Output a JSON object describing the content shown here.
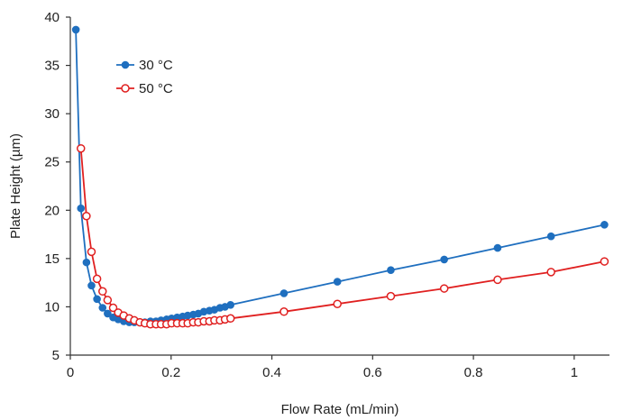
{
  "chart_data": {
    "type": "line",
    "xlabel": "Flow Rate (mL/min)",
    "ylabel": "Plate Height (µm)",
    "xlim": [
      0,
      1.07
    ],
    "ylim": [
      5,
      40
    ],
    "xticks": [
      0,
      0.2,
      0.4,
      0.6,
      0.8,
      1
    ],
    "xtick_labels": [
      "0",
      "0.2",
      "0.4",
      "0.6",
      "0.8",
      "1"
    ],
    "yticks": [
      5,
      10,
      15,
      20,
      25,
      30,
      35,
      40
    ],
    "ytick_labels": [
      "5",
      "10",
      "15",
      "20",
      "25",
      "30",
      "35",
      "40"
    ],
    "grid": false,
    "legend_position": "top-left",
    "series": [
      {
        "name": "30 °C",
        "color": "#1f6fbf",
        "marker": "filled-circle",
        "x": [
          0.011,
          0.021,
          0.032,
          0.042,
          0.053,
          0.064,
          0.074,
          0.085,
          0.095,
          0.106,
          0.117,
          0.127,
          0.138,
          0.148,
          0.159,
          0.17,
          0.18,
          0.191,
          0.201,
          0.212,
          0.223,
          0.233,
          0.244,
          0.254,
          0.265,
          0.276,
          0.286,
          0.297,
          0.307,
          0.318,
          0.424,
          0.53,
          0.636,
          0.742,
          0.848,
          0.954,
          1.06
        ],
        "y": [
          38.7,
          20.2,
          14.6,
          12.2,
          10.8,
          9.9,
          9.3,
          8.9,
          8.7,
          8.5,
          8.4,
          8.4,
          8.4,
          8.4,
          8.5,
          8.5,
          8.6,
          8.7,
          8.8,
          8.9,
          9.0,
          9.1,
          9.2,
          9.3,
          9.5,
          9.6,
          9.7,
          9.9,
          10.0,
          10.2,
          11.4,
          12.6,
          13.8,
          14.9,
          16.1,
          17.3,
          18.5
        ]
      },
      {
        "name": "50 °C",
        "color": "#e02020",
        "marker": "open-circle",
        "x": [
          0.021,
          0.032,
          0.042,
          0.053,
          0.064,
          0.074,
          0.085,
          0.095,
          0.106,
          0.117,
          0.127,
          0.138,
          0.148,
          0.159,
          0.17,
          0.18,
          0.191,
          0.201,
          0.212,
          0.223,
          0.233,
          0.244,
          0.254,
          0.265,
          0.276,
          0.286,
          0.297,
          0.307,
          0.318,
          0.424,
          0.53,
          0.636,
          0.742,
          0.848,
          0.954,
          1.06
        ],
        "y": [
          26.4,
          19.4,
          15.7,
          12.9,
          11.6,
          10.7,
          9.9,
          9.4,
          9.1,
          8.8,
          8.6,
          8.4,
          8.3,
          8.2,
          8.2,
          8.2,
          8.2,
          8.3,
          8.3,
          8.3,
          8.3,
          8.4,
          8.4,
          8.5,
          8.5,
          8.6,
          8.6,
          8.7,
          8.8,
          9.5,
          10.3,
          11.1,
          11.9,
          12.8,
          13.6,
          14.7
        ]
      }
    ]
  }
}
